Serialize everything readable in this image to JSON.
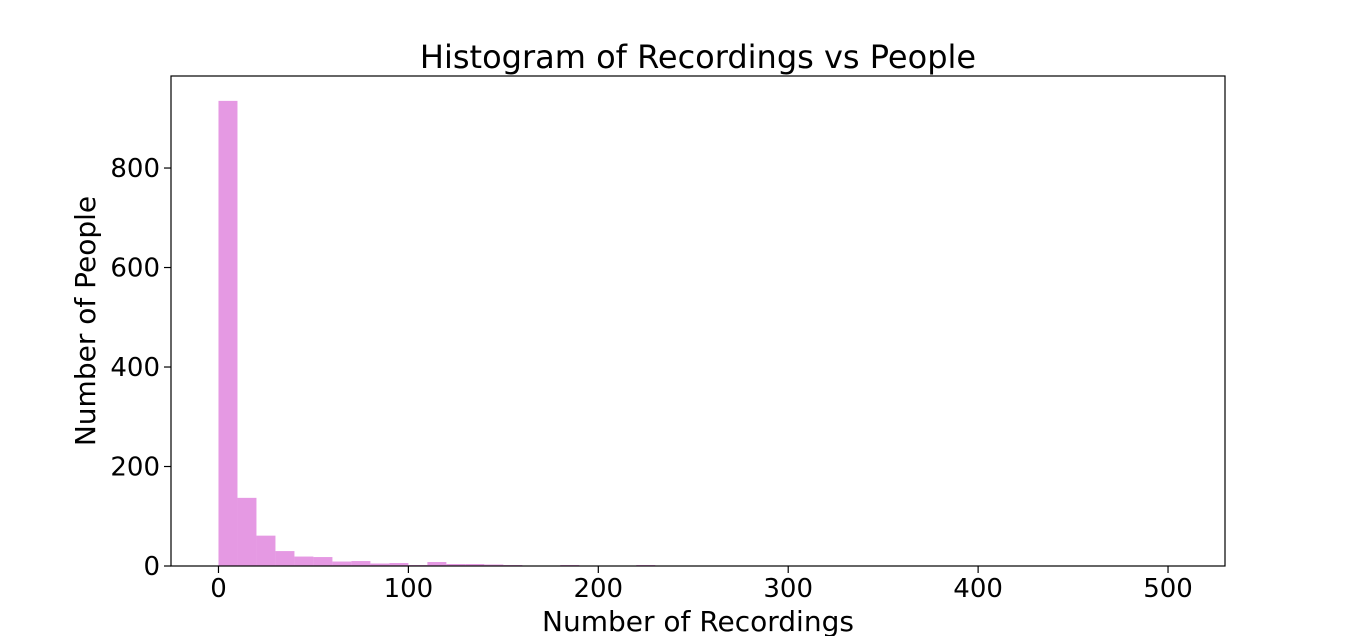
{
  "chart_data": {
    "type": "bar",
    "title": "Histogram of Recordings vs People",
    "xlabel": "Number of Recordings",
    "ylabel": "Number of People",
    "xlim": [
      -25,
      530
    ],
    "ylim": [
      0,
      985
    ],
    "xticks": [
      0,
      100,
      200,
      300,
      400,
      500
    ],
    "yticks": [
      0,
      200,
      400,
      600,
      800
    ],
    "grid": false,
    "bar_color": "#e599e3",
    "bins": [
      {
        "x0": 0,
        "x1": 10,
        "count": 935
      },
      {
        "x0": 10,
        "x1": 20,
        "count": 137
      },
      {
        "x0": 20,
        "x1": 30,
        "count": 61
      },
      {
        "x0": 30,
        "x1": 40,
        "count": 30
      },
      {
        "x0": 40,
        "x1": 50,
        "count": 19
      },
      {
        "x0": 50,
        "x1": 60,
        "count": 18
      },
      {
        "x0": 60,
        "x1": 70,
        "count": 9
      },
      {
        "x0": 70,
        "x1": 80,
        "count": 10
      },
      {
        "x0": 80,
        "x1": 90,
        "count": 5
      },
      {
        "x0": 90,
        "x1": 100,
        "count": 6
      },
      {
        "x0": 100,
        "x1": 110,
        "count": 2
      },
      {
        "x0": 110,
        "x1": 120,
        "count": 8
      },
      {
        "x0": 120,
        "x1": 130,
        "count": 4
      },
      {
        "x0": 130,
        "x1": 140,
        "count": 4
      },
      {
        "x0": 140,
        "x1": 150,
        "count": 3
      },
      {
        "x0": 150,
        "x1": 160,
        "count": 2
      },
      {
        "x0": 160,
        "x1": 170,
        "count": 1
      },
      {
        "x0": 170,
        "x1": 180,
        "count": 1
      },
      {
        "x0": 180,
        "x1": 190,
        "count": 2
      },
      {
        "x0": 190,
        "x1": 200,
        "count": 1
      },
      {
        "x0": 210,
        "x1": 220,
        "count": 1
      },
      {
        "x0": 220,
        "x1": 230,
        "count": 2
      },
      {
        "x0": 230,
        "x1": 240,
        "count": 1
      },
      {
        "x0": 260,
        "x1": 270,
        "count": 1
      },
      {
        "x0": 270,
        "x1": 280,
        "count": 1
      },
      {
        "x0": 310,
        "x1": 320,
        "count": 1
      },
      {
        "x0": 320,
        "x1": 330,
        "count": 1
      },
      {
        "x0": 340,
        "x1": 350,
        "count": 1
      },
      {
        "x0": 360,
        "x1": 370,
        "count": 1
      },
      {
        "x0": 370,
        "x1": 380,
        "count": 1
      },
      {
        "x0": 380,
        "x1": 390,
        "count": 1
      },
      {
        "x0": 430,
        "x1": 440,
        "count": 1
      },
      {
        "x0": 490,
        "x1": 500,
        "count": 1
      }
    ]
  }
}
